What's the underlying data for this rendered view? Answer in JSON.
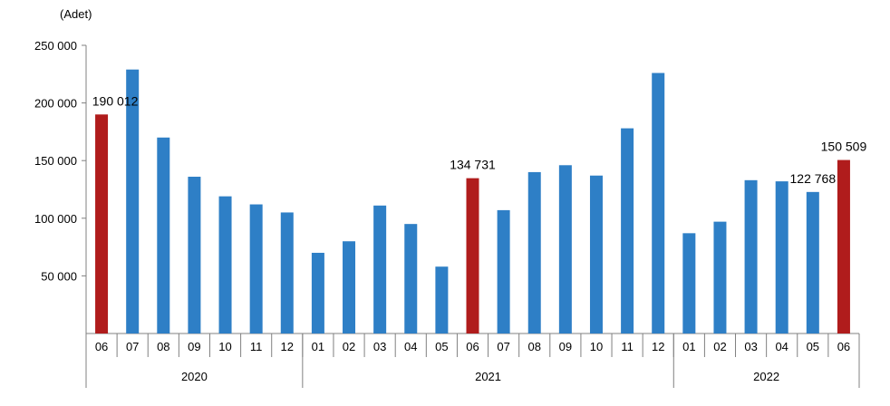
{
  "chart_data": {
    "type": "bar",
    "unit_label": "(Adet)",
    "ylim": [
      0,
      250000
    ],
    "yticks": [
      {
        "value": 50000,
        "label": "50 000"
      },
      {
        "value": 100000,
        "label": "100 000"
      },
      {
        "value": 150000,
        "label": "150 000"
      },
      {
        "value": 200000,
        "label": "200 000"
      },
      {
        "value": 250000,
        "label": "250 000"
      }
    ],
    "categories": [
      "06",
      "07",
      "08",
      "09",
      "10",
      "11",
      "12",
      "01",
      "02",
      "03",
      "04",
      "05",
      "06",
      "07",
      "08",
      "09",
      "10",
      "11",
      "12",
      "01",
      "02",
      "03",
      "04",
      "05",
      "06"
    ],
    "values": [
      190012,
      229000,
      170000,
      136000,
      119000,
      112000,
      105000,
      70000,
      80000,
      111000,
      95000,
      58000,
      134731,
      107000,
      140000,
      146000,
      137000,
      178000,
      226000,
      87000,
      97000,
      133000,
      132000,
      122768,
      150509
    ],
    "highlight_indices": [
      0,
      12,
      24
    ],
    "data_labels": [
      {
        "index": 0,
        "text": "190 012"
      },
      {
        "index": 12,
        "text": "134 731"
      },
      {
        "index": 23,
        "text": "122 768"
      },
      {
        "index": 24,
        "text": "150 509"
      }
    ],
    "groups": [
      {
        "label": "2020",
        "start": 0,
        "end": 6
      },
      {
        "label": "2021",
        "start": 7,
        "end": 18
      },
      {
        "label": "2022",
        "start": 19,
        "end": 24
      }
    ],
    "colors": {
      "bar": "#2e7fc6",
      "highlight": "#b01c1c",
      "axis": "#808080"
    },
    "grid": false,
    "legend": "none"
  }
}
